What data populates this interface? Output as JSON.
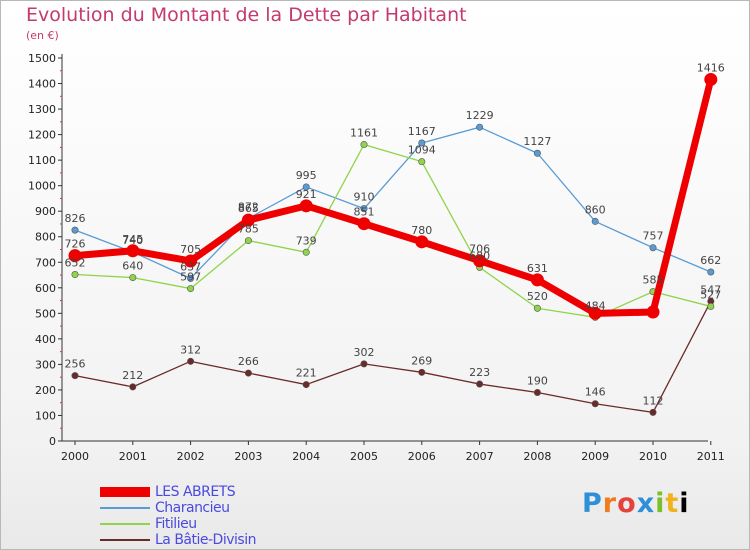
{
  "chart_data": {
    "type": "line",
    "title": "Evolution du Montant de la Dette par Habitant",
    "subtitle": "(en €)",
    "x": [
      "2000",
      "2001",
      "2002",
      "2003",
      "2004",
      "2005",
      "2006",
      "2007",
      "2008",
      "2009",
      "2010",
      "2011"
    ],
    "yticks": [
      0,
      100,
      200,
      300,
      400,
      500,
      600,
      700,
      800,
      900,
      1000,
      1100,
      1200,
      1300,
      1400,
      1500
    ],
    "ylim": [
      0,
      1500
    ],
    "grid": false,
    "legend_placement": "bottom-left",
    "series": [
      {
        "name": "LES ABRETS",
        "color": "#ee0000",
        "values": [
          726,
          745,
          705,
          865,
          921,
          851,
          780,
          706,
          631,
          500,
          505,
          1416
        ],
        "labels": [
          "726",
          "745",
          "705",
          "865",
          "921",
          "851",
          "780",
          "706",
          "631",
          "",
          "",
          "1416"
        ]
      },
      {
        "name": "Charancieu",
        "color": "#5a9bd5",
        "values": [
          826,
          740,
          637,
          872,
          995,
          910,
          1167,
          1229,
          1127,
          860,
          757,
          662
        ],
        "labels": [
          "826",
          "740",
          "637",
          "872",
          "995",
          "910",
          "1167",
          "1229",
          "1127",
          "860",
          "757",
          "662"
        ]
      },
      {
        "name": "Fitilieu",
        "color": "#8fd44a",
        "values": [
          652,
          640,
          597,
          785,
          739,
          1161,
          1094,
          680,
          520,
          484,
          585,
          527
        ],
        "labels": [
          "652",
          "640",
          "597",
          "785",
          "739",
          "1161",
          "1094",
          "680",
          "520",
          "484",
          "585",
          "527"
        ]
      },
      {
        "name": "La Bâtie-Divisin",
        "color": "#6b2a2a",
        "values": [
          256,
          212,
          312,
          266,
          221,
          302,
          269,
          223,
          190,
          146,
          112,
          547
        ],
        "labels": [
          "256",
          "212",
          "312",
          "266",
          "221",
          "302",
          "269",
          "223",
          "190",
          "146",
          "112",
          "547"
        ]
      }
    ]
  },
  "legend": {
    "items": [
      "LES ABRETS",
      "Charancieu",
      "Fitilieu",
      "La Bâtie-Divisin"
    ]
  },
  "logo": {
    "letters": [
      "P",
      "r",
      "o",
      "x",
      "i",
      "t",
      "i"
    ]
  }
}
